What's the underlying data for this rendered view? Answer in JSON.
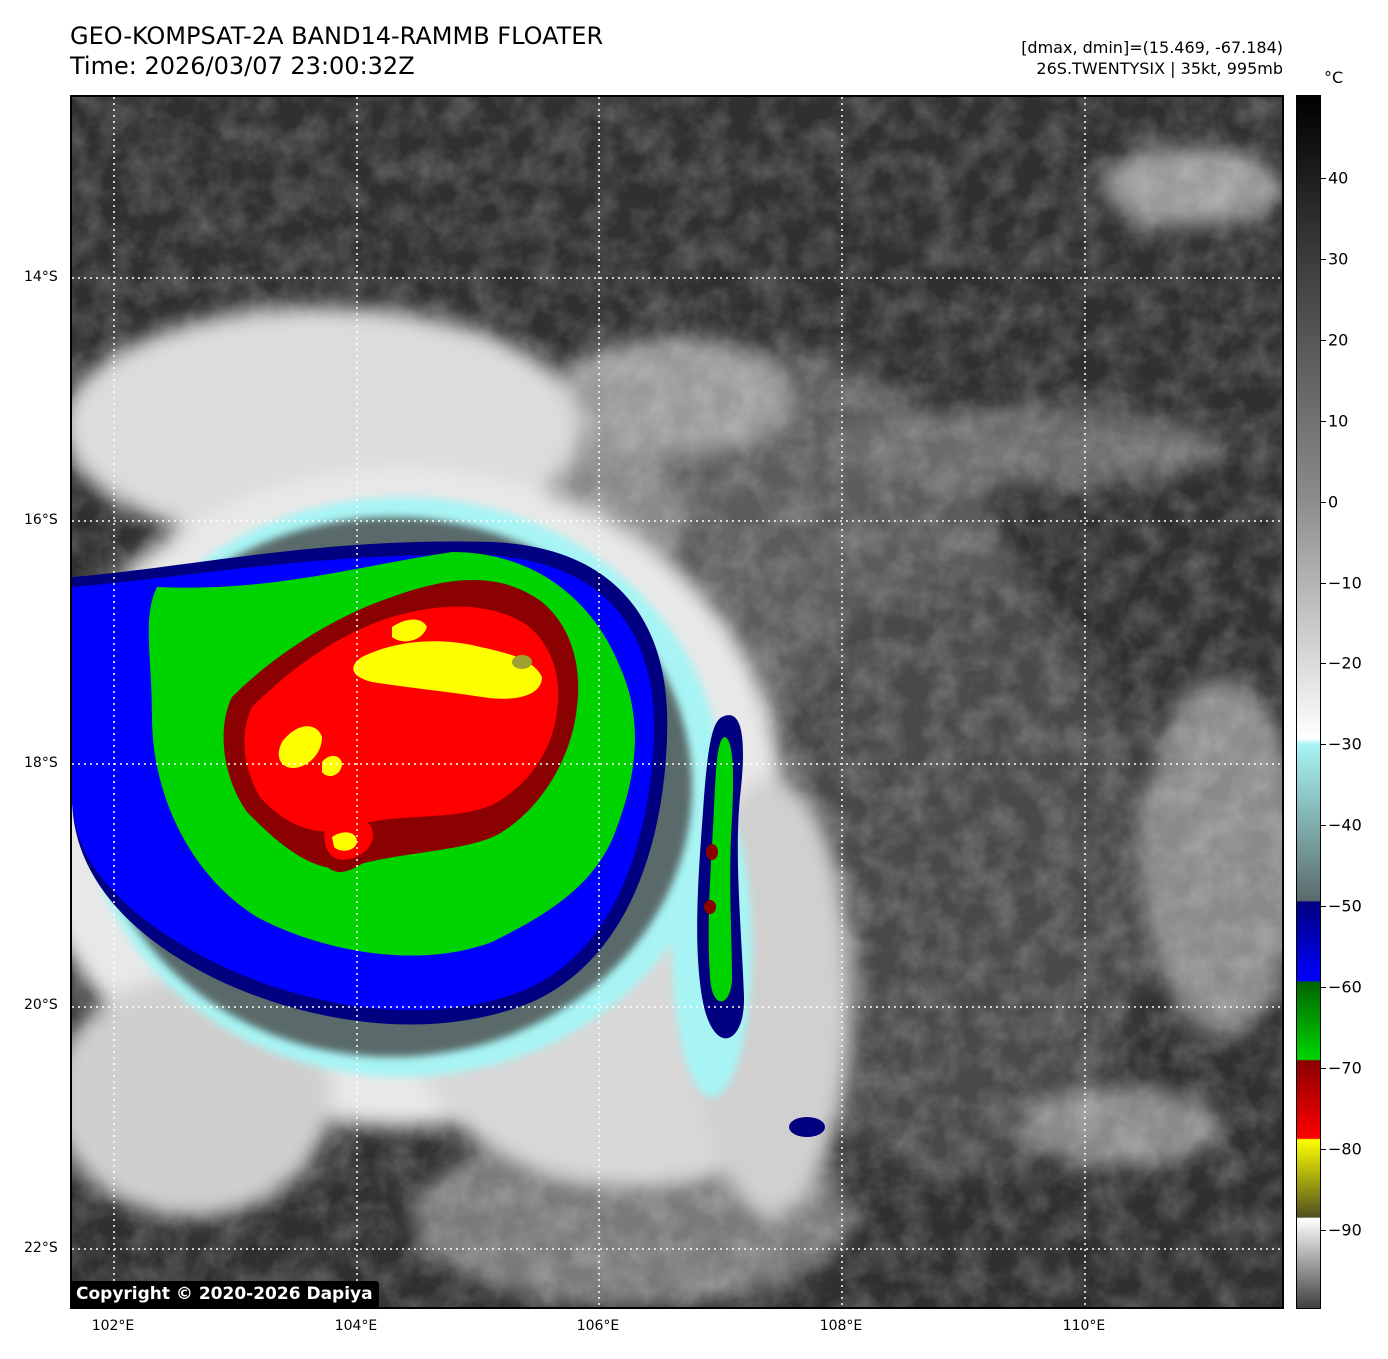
{
  "header": {
    "title_line1": "GEO-KOMPSAT-2A BAND14-RAMMB FLOATER",
    "title_line2": "Time: 2026/03/07 23:00:32Z",
    "info_line1": "[dmax, dmin]=(15.469, -67.184)",
    "info_line2": "26S.TWENTYSIX | 35kt, 995mb"
  },
  "map": {
    "lat_labels": [
      "14°S",
      "16°S",
      "18°S",
      "20°S",
      "22°S"
    ],
    "lon_labels": [
      "102°E",
      "104°E",
      "106°E",
      "108°E",
      "110°E"
    ],
    "copyright": "Copyright © 2020-2026 Dapiya"
  },
  "colorbar": {
    "unit": "°C",
    "ticks": [
      "40",
      "30",
      "20",
      "10",
      "0",
      "−10",
      "−20",
      "−30",
      "−40",
      "−50",
      "−60",
      "−70",
      "−80",
      "−90"
    ],
    "colors": {
      "black": "#000000",
      "white": "#ffffff",
      "cyan": "#a8f4f4",
      "gray": "#5a6a6a",
      "blue_dark": "#000080",
      "blue": "#0000ff",
      "green": "#00d400",
      "red_dark": "#8b0000",
      "red": "#ff0000",
      "yellow": "#ffff00",
      "olive": "#505020"
    }
  }
}
